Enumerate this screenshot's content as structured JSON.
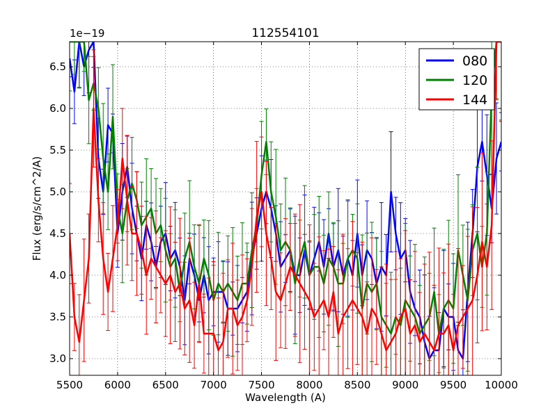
{
  "chart_data": {
    "type": "line",
    "title": "112554101",
    "xlabel": "Wavelength (A)",
    "ylabel": "Flux (erg/s/cm^2/A)",
    "offset_label": "1e−19",
    "xlim": [
      5500,
      10000
    ],
    "ylim": [
      2.8,
      6.8
    ],
    "xticks": [
      5500,
      6000,
      6500,
      7000,
      7500,
      8000,
      8500,
      9000,
      9500,
      10000
    ],
    "xtick_labels": [
      "5500",
      "6000",
      "6500",
      "7000",
      "7500",
      "8000",
      "8500",
      "9000",
      "9500",
      "10000"
    ],
    "yticks": [
      3.0,
      3.5,
      4.0,
      4.5,
      5.0,
      5.5,
      6.0,
      6.5
    ],
    "ytick_labels": [
      "3.0",
      "3.5",
      "4.0",
      "4.5",
      "5.0",
      "5.5",
      "6.0",
      "6.5"
    ],
    "grid": true,
    "legend_position": "top-right",
    "x": [
      5500,
      5550,
      5600,
      5650,
      5700,
      5750,
      5800,
      5850,
      5900,
      5950,
      6000,
      6050,
      6100,
      6150,
      6200,
      6250,
      6300,
      6350,
      6400,
      6450,
      6500,
      6550,
      6600,
      6650,
      6700,
      6750,
      6800,
      6850,
      6900,
      6950,
      7000,
      7050,
      7100,
      7150,
      7200,
      7250,
      7300,
      7350,
      7400,
      7450,
      7500,
      7550,
      7600,
      7650,
      7700,
      7750,
      7800,
      7850,
      7900,
      7950,
      8000,
      8050,
      8100,
      8150,
      8200,
      8250,
      8300,
      8350,
      8400,
      8450,
      8500,
      8550,
      8600,
      8650,
      8700,
      8750,
      8800,
      8850,
      8900,
      8950,
      9000,
      9050,
      9100,
      9150,
      9200,
      9250,
      9300,
      9350,
      9400,
      9450,
      9500,
      9550,
      9600,
      9650,
      9700,
      9750,
      9800,
      9850,
      9900,
      9950,
      10000
    ],
    "series": [
      {
        "name": "080",
        "color": "#0000ff",
        "values": [
          6.6,
          6.2,
          6.8,
          6.5,
          6.7,
          6.8,
          5.4,
          5.0,
          5.8,
          5.7,
          4.5,
          5.0,
          5.3,
          4.8,
          4.5,
          4.2,
          4.6,
          4.4,
          4.1,
          4.4,
          4.5,
          4.2,
          4.3,
          4.1,
          3.7,
          4.2,
          4.0,
          3.7,
          4.0,
          3.7,
          3.8,
          3.8,
          3.8,
          3.6,
          3.6,
          3.6,
          3.7,
          3.8,
          4.2,
          4.5,
          4.8,
          5.0,
          4.8,
          4.5,
          4.1,
          4.2,
          4.3,
          4.0,
          4.0,
          4.3,
          4.0,
          4.2,
          4.4,
          4.1,
          4.5,
          4.1,
          4.3,
          4.0,
          4.2,
          4.0,
          4.5,
          4.0,
          4.3,
          4.2,
          3.9,
          4.1,
          4.0,
          5.0,
          4.5,
          4.2,
          4.3,
          3.8,
          3.6,
          3.5,
          3.2,
          3.0,
          3.1,
          3.1,
          3.6,
          3.5,
          3.5,
          3.1,
          3.0,
          3.8,
          4.5,
          5.3,
          5.6,
          5.2,
          4.8,
          5.4,
          5.6
        ]
      },
      {
        "name": "120",
        "color": "#008000",
        "values": [
          6.8,
          6.8,
          6.8,
          6.8,
          6.1,
          6.3,
          6.0,
          5.4,
          5.0,
          5.9,
          4.8,
          4.5,
          4.9,
          5.1,
          4.9,
          4.6,
          4.7,
          4.8,
          4.5,
          4.6,
          4.3,
          4.1,
          4.2,
          3.8,
          4.2,
          4.4,
          4.1,
          3.9,
          4.2,
          4.0,
          3.7,
          3.9,
          3.8,
          3.9,
          3.8,
          3.7,
          3.9,
          3.9,
          4.3,
          4.6,
          5.2,
          5.6,
          5.0,
          4.7,
          4.3,
          4.4,
          4.3,
          3.9,
          4.2,
          4.4,
          4.0,
          4.1,
          4.1,
          3.9,
          4.2,
          4.1,
          3.9,
          3.9,
          4.2,
          4.3,
          4.2,
          3.6,
          3.9,
          3.8,
          3.9,
          3.5,
          3.4,
          3.3,
          3.5,
          3.4,
          3.7,
          3.6,
          3.5,
          3.3,
          3.4,
          3.5,
          3.8,
          3.3,
          3.6,
          3.7,
          3.6,
          4.3,
          4.0,
          3.7,
          4.3,
          4.5,
          4.1,
          4.5,
          6.2,
          6.8,
          6.8
        ]
      },
      {
        "name": "144",
        "color": "#ff0000",
        "values": [
          4.5,
          3.5,
          3.2,
          3.7,
          4.2,
          6.0,
          4.9,
          4.2,
          3.8,
          4.2,
          4.6,
          5.4,
          4.9,
          4.5,
          4.5,
          4.3,
          4.0,
          4.2,
          4.1,
          4.0,
          3.9,
          4.0,
          3.8,
          3.9,
          3.6,
          3.7,
          3.4,
          3.9,
          3.3,
          3.3,
          3.3,
          3.1,
          3.2,
          3.6,
          3.6,
          3.4,
          3.5,
          3.7,
          4.1,
          4.7,
          5.0,
          4.5,
          4.2,
          3.8,
          3.7,
          3.9,
          4.1,
          4.0,
          3.9,
          3.8,
          3.7,
          3.5,
          3.6,
          3.7,
          3.5,
          3.8,
          3.3,
          3.5,
          3.6,
          3.7,
          3.6,
          3.5,
          3.3,
          3.6,
          3.5,
          3.3,
          3.1,
          3.2,
          3.3,
          3.5,
          3.6,
          3.3,
          3.4,
          3.2,
          3.3,
          3.2,
          3.1,
          3.3,
          3.3,
          3.4,
          3.1,
          3.4,
          3.5,
          3.6,
          3.7,
          4.0,
          4.4,
          4.1,
          4.6,
          6.8,
          6.8
        ]
      }
    ]
  }
}
